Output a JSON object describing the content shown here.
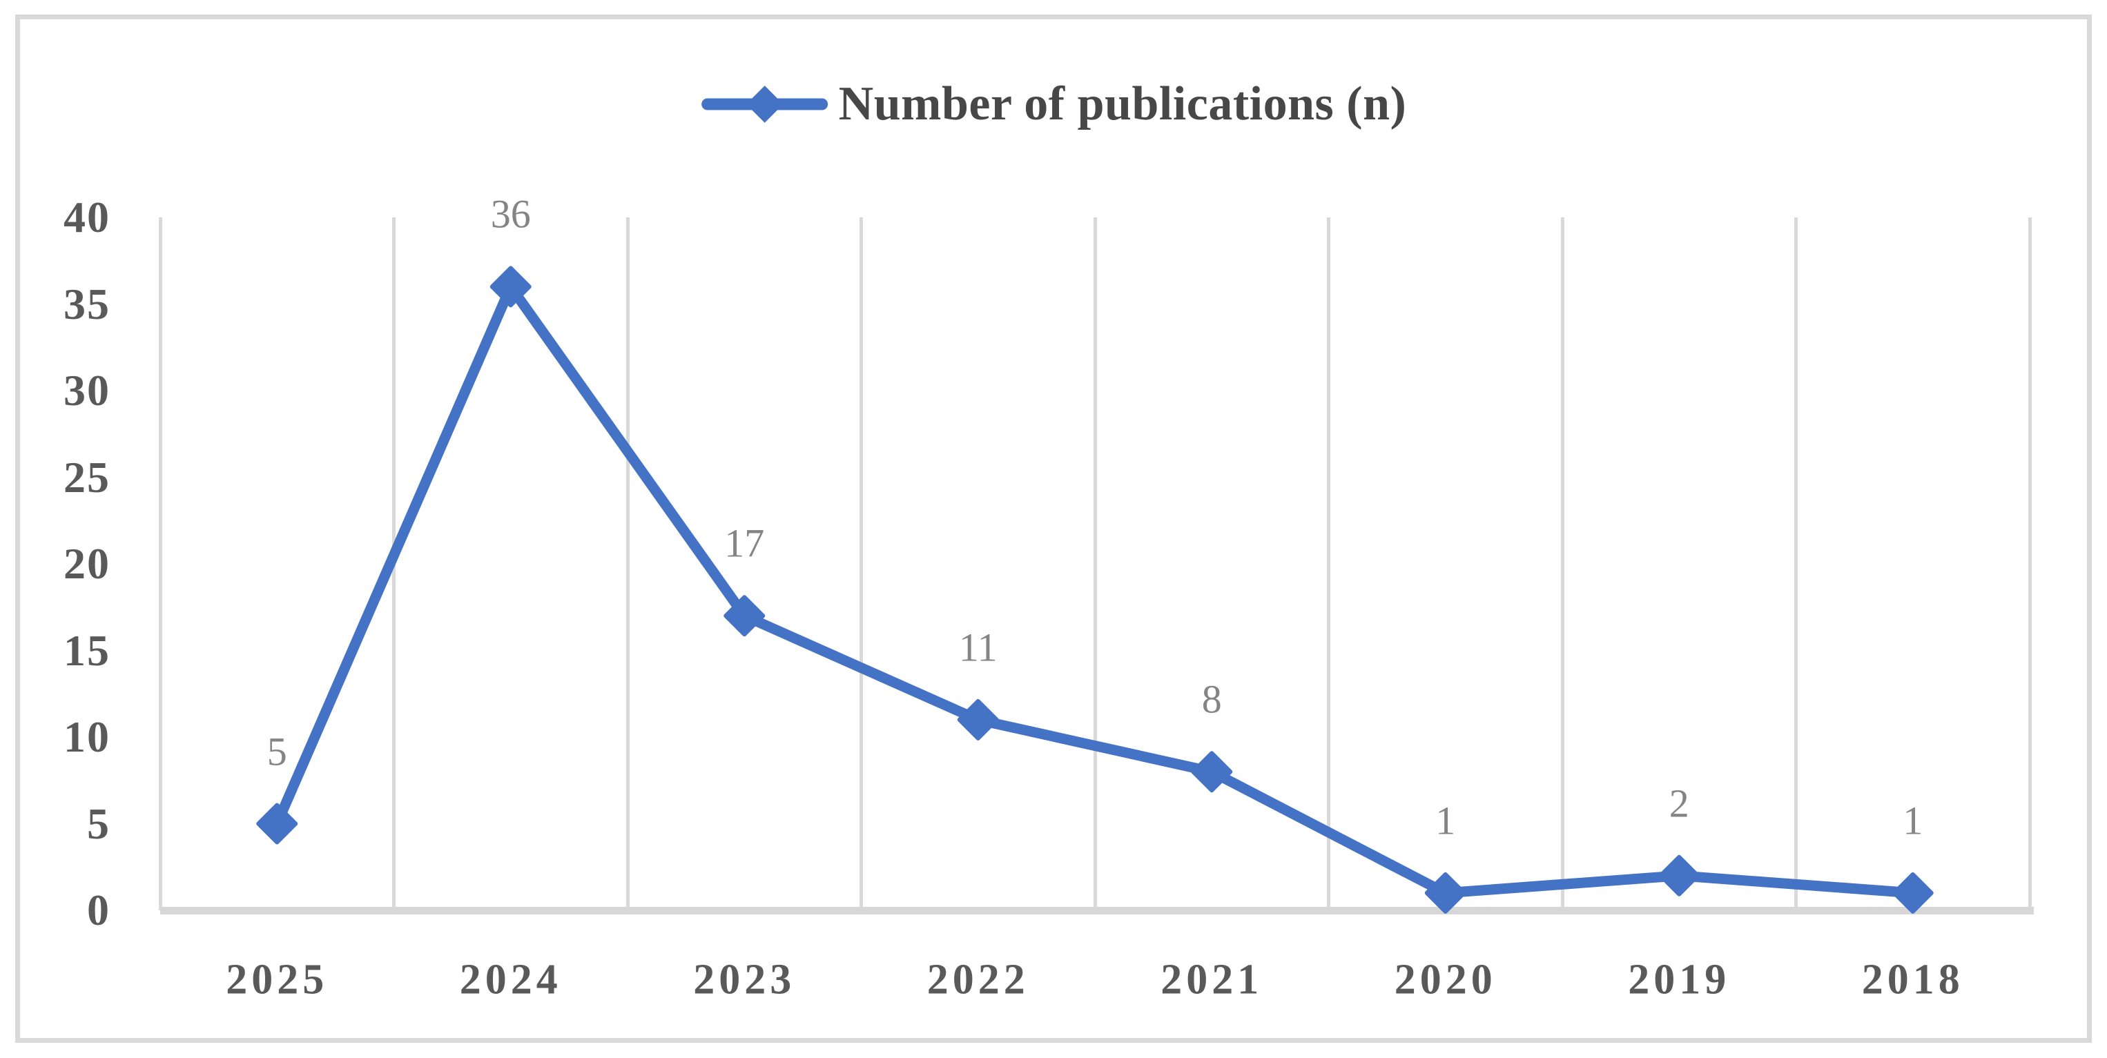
{
  "legend": {
    "label": "Number of publications (n)"
  },
  "chart_data": {
    "type": "line",
    "title": "",
    "xlabel": "",
    "ylabel": "",
    "categories": [
      "2025",
      "2024",
      "2023",
      "2022",
      "2021",
      "2020",
      "2019",
      "2018"
    ],
    "series": [
      {
        "name": "Number of publications (n)",
        "values": [
          5,
          36,
          17,
          11,
          8,
          1,
          2,
          1
        ]
      }
    ],
    "data_labels": [
      "5",
      "36",
      "17",
      "11",
      "8",
      "1",
      "2",
      "1"
    ],
    "ylim": [
      0,
      40
    ],
    "ytick_interval": 5,
    "yticks": [
      "0",
      "5",
      "10",
      "15",
      "20",
      "25",
      "30",
      "35",
      "40"
    ],
    "legend_position": "top-center",
    "grid": "vertical-only",
    "marker": "diamond",
    "colors": {
      "series": "#4472C4",
      "gridline": "#D9D9D9",
      "axis_line": "#D7D7D7",
      "tick_label": "#595959",
      "data_label": "#848484",
      "legend_text": "#474747",
      "figure_border": "#D9D9D9",
      "background": "#FFFFFF"
    }
  }
}
